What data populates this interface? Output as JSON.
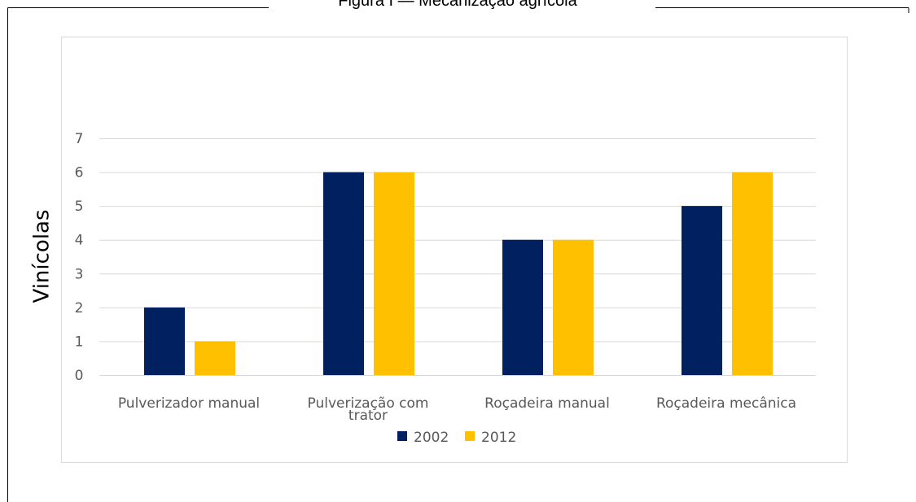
{
  "chart_data": {
    "type": "bar",
    "title": "Figura I — Mecanização agrícola",
    "y_label": "Vinícolas",
    "categories": [
      "Pulverizador manual",
      "Pulverização com trator",
      "Roçadeira manual",
      "Roçadeira mecânica"
    ],
    "series": [
      {
        "name": "2002",
        "color": "#002060",
        "values": [
          2,
          6,
          4,
          5
        ]
      },
      {
        "name": "2012",
        "color": "#ffc000",
        "values": [
          1,
          6,
          4,
          6
        ]
      }
    ],
    "ylim": [
      0,
      7
    ],
    "yticks": [
      0,
      1,
      2,
      3,
      4,
      5,
      6,
      7
    ],
    "grid": true,
    "legend": "bottom"
  }
}
